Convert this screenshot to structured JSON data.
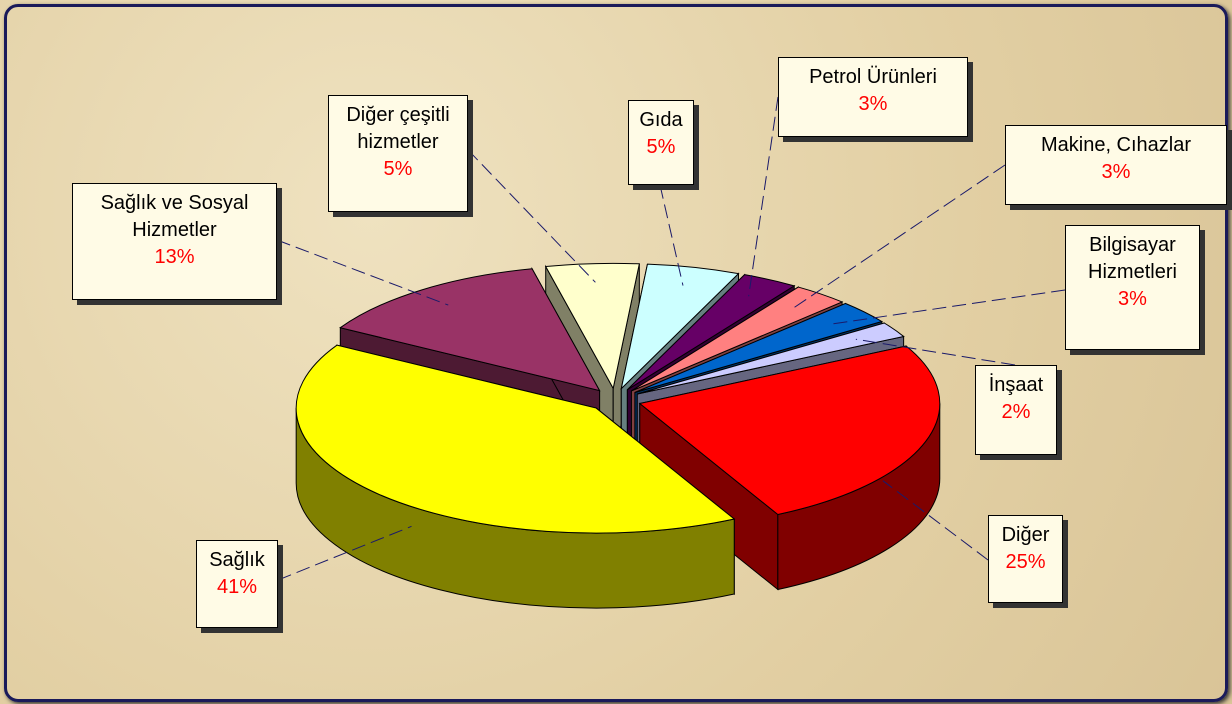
{
  "chart_data": {
    "type": "pie",
    "categories": [
      "Gıda",
      "Petrol Ürünleri",
      "Makine, Cıhazlar",
      "Bilgisayar Hizmetleri",
      "İnşaat",
      "Diğer",
      "Sağlık",
      "Sağlık ve Sosyal Hizmetler",
      "Diğer çeşitli hizmetler"
    ],
    "values": [
      5,
      3,
      3,
      3,
      2,
      25,
      41,
      13,
      5
    ],
    "value_labels": [
      "5%",
      "3%",
      "3%",
      "3%",
      "2%",
      "25%",
      "41%",
      "13%",
      "5%"
    ],
    "colors": [
      "#ccffff",
      "#660066",
      "#ff8080",
      "#0066cc",
      "#ccccff",
      "#ff0000",
      "#ffff00",
      "#993366",
      "#ffffcc"
    ]
  }
}
